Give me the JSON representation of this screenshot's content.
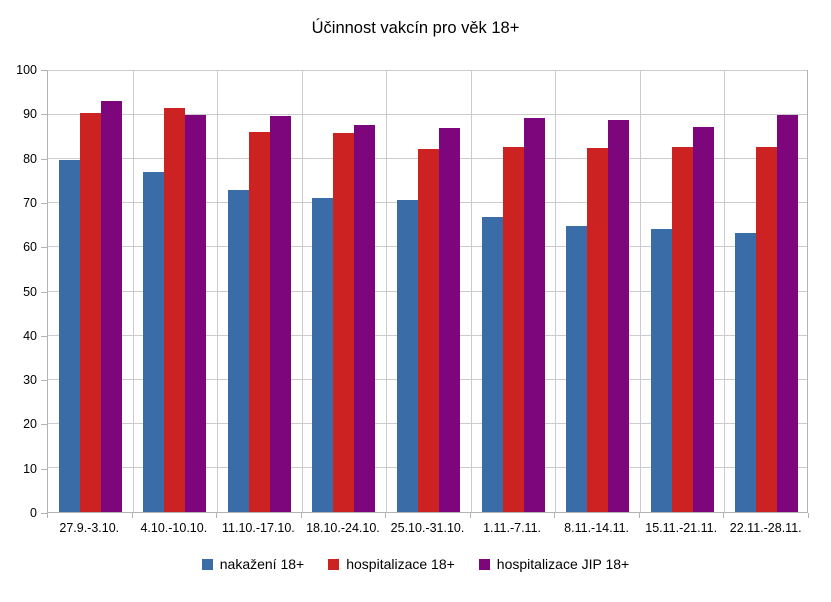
{
  "title": "Účinnost vakcín pro věk 18+",
  "chart_data": {
    "type": "bar",
    "title": "Účinnost vakcín pro věk 18+",
    "categories": [
      "27.9.-3.10.",
      "4.10.-10.10.",
      "11.10.-17.10.",
      "18.10.-24.10.",
      "25.10.-31.10.",
      "1.11.-7.11.",
      "8.11.-14.11.",
      "15.11.-21.11.",
      "22.11.-28.11."
    ],
    "series": [
      {
        "name": "nakažení 18+",
        "color": "#3A6CA8",
        "values": [
          79.8,
          77.2,
          73.0,
          71.3,
          70.7,
          66.8,
          64.9,
          64.1,
          63.2
        ]
      },
      {
        "name": "hospitalizace 18+",
        "color": "#CC2222",
        "values": [
          90.4,
          91.6,
          86.1,
          86.0,
          82.4,
          82.8,
          82.6,
          82.8,
          82.8
        ]
      },
      {
        "name": "hospitalizace JIP 18+",
        "color": "#7D067D",
        "values": [
          93.1,
          90.1,
          89.7,
          87.7,
          87.1,
          89.3,
          88.9,
          87.2,
          90.0
        ]
      }
    ],
    "xlabel": "",
    "ylabel": "",
    "ylim": [
      0,
      100
    ],
    "yticks": [
      0,
      10,
      20,
      30,
      40,
      50,
      60,
      70,
      80,
      90,
      100
    ],
    "grid": true,
    "legend_position": "bottom"
  },
  "colors": {
    "axis": "#B3B3B3",
    "grid": "#CCCCCC",
    "text": "#000000",
    "background": "#FFFFFF"
  }
}
